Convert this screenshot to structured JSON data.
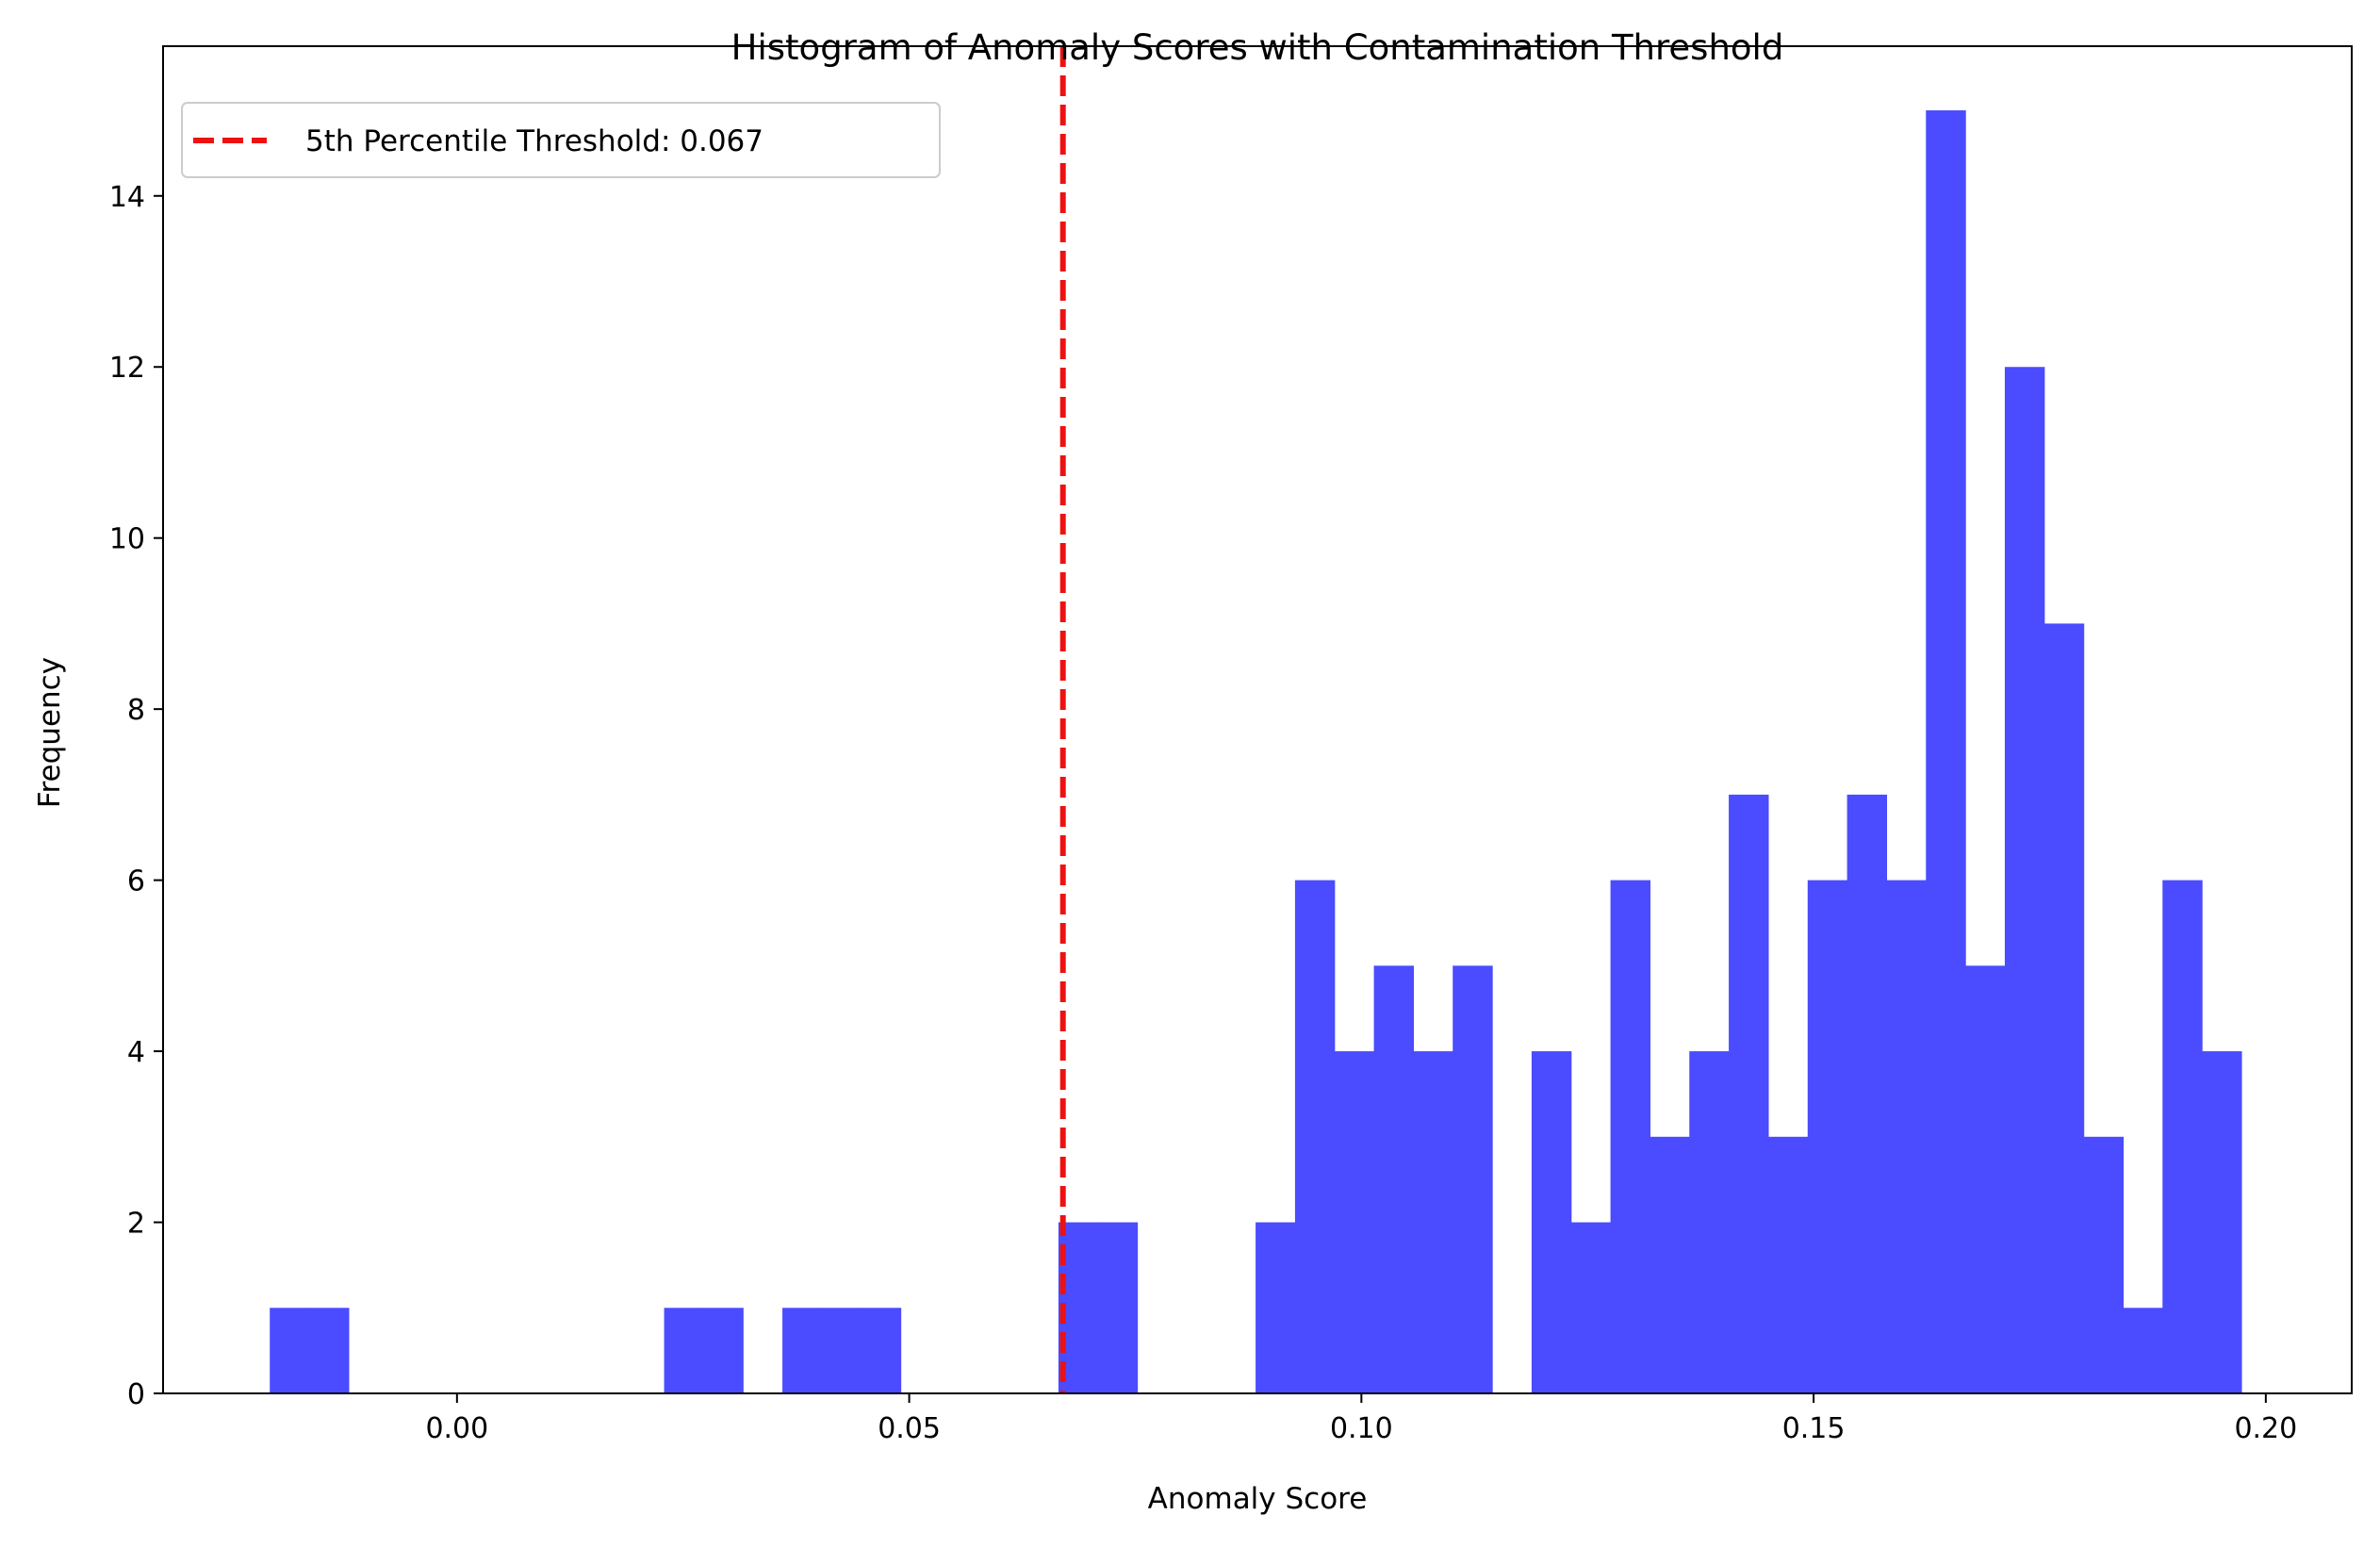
{
  "chart_data": {
    "type": "bar",
    "title": "Histogram of Anomaly Scores with Contamination Threshold",
    "xlabel": "Anomaly Score",
    "ylabel": "Frequency",
    "xlim": [
      -0.0325,
      0.2095
    ],
    "ylim": [
      0,
      15.75
    ],
    "xticks": [
      {
        "value": 0.0,
        "label": "0.00"
      },
      {
        "value": 0.05,
        "label": "0.05"
      },
      {
        "value": 0.1,
        "label": "0.10"
      },
      {
        "value": 0.15,
        "label": "0.15"
      },
      {
        "value": 0.2,
        "label": "0.20"
      }
    ],
    "yticks": [
      {
        "value": 0,
        "label": "0"
      },
      {
        "value": 2,
        "label": "2"
      },
      {
        "value": 4,
        "label": "4"
      },
      {
        "value": 6,
        "label": "6"
      },
      {
        "value": 8,
        "label": "8"
      },
      {
        "value": 10,
        "label": "10"
      },
      {
        "value": 12,
        "label": "12"
      },
      {
        "value": 14,
        "label": "14"
      }
    ],
    "bin_start": -0.0207,
    "bin_width": 0.00436,
    "counts": [
      1,
      1,
      0,
      0,
      0,
      0,
      0,
      0,
      0,
      0,
      1,
      1,
      0,
      1,
      1,
      1,
      0,
      0,
      0,
      0,
      2,
      2,
      0,
      0,
      0,
      2,
      6,
      4,
      5,
      4,
      5,
      0,
      4,
      2,
      6,
      3,
      4,
      7,
      3,
      6,
      7,
      6,
      15,
      5,
      12,
      9,
      3,
      1,
      6,
      4
    ],
    "bar_color": "#4b4bff",
    "grid": false,
    "threshold": {
      "value": 0.067,
      "label": "5th Percentile Threshold: 0.067",
      "color": "#ee1111",
      "style": "dashed"
    },
    "legend_position": "upper-left"
  }
}
